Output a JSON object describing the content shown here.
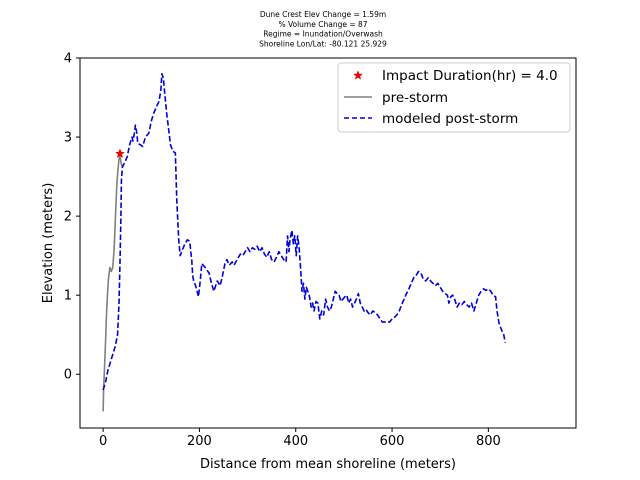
{
  "title_lines": [
    "Dune Crest Elev Change = 1.59m",
    "% Volume Change = 87",
    "Regime = Inundation/Overwash",
    "Shoreline Lon/Lat: -80.121 25.929"
  ],
  "chart_data": {
    "type": "line",
    "xlabel": "Distance from mean shoreline (meters)",
    "ylabel": "Elevation (meters)",
    "xlim": [
      -48,
      982
    ],
    "ylim": [
      -0.68,
      4.0
    ],
    "xticks": [
      0,
      200,
      400,
      600,
      800
    ],
    "yticks": [
      0,
      1,
      2,
      3,
      4
    ],
    "grid": false,
    "legend_position": "upper-right",
    "colors": {
      "pre_storm": "#808080",
      "post_storm": "#0000dd",
      "impact_marker": "#ee0000"
    },
    "impact_marker": {
      "label": "Impact Duration(hr) = 4.0",
      "x": 35,
      "y": 2.79
    },
    "series": [
      {
        "name": "pre-storm",
        "style": "solid",
        "points": [
          [
            0,
            -0.47
          ],
          [
            1,
            -0.2
          ],
          [
            3,
            0.1
          ],
          [
            5,
            0.4
          ],
          [
            7,
            0.75
          ],
          [
            9,
            1.0
          ],
          [
            11,
            1.2
          ],
          [
            14,
            1.35
          ],
          [
            17,
            1.3
          ],
          [
            20,
            1.35
          ],
          [
            23,
            1.6
          ],
          [
            25,
            1.9
          ],
          [
            27,
            2.2
          ],
          [
            29,
            2.45
          ],
          [
            31,
            2.6
          ],
          [
            33,
            2.72
          ],
          [
            35,
            2.79
          ],
          [
            37,
            2.68
          ],
          [
            40,
            2.62
          ]
        ]
      },
      {
        "name": "modeled post-storm",
        "style": "dashed",
        "points": [
          [
            0,
            -0.2
          ],
          [
            5,
            -0.1
          ],
          [
            10,
            0.05
          ],
          [
            15,
            0.15
          ],
          [
            20,
            0.25
          ],
          [
            25,
            0.35
          ],
          [
            30,
            0.5
          ],
          [
            33,
            0.9
          ],
          [
            35,
            1.4
          ],
          [
            37,
            2.0
          ],
          [
            38,
            2.45
          ],
          [
            40,
            2.62
          ],
          [
            45,
            2.68
          ],
          [
            50,
            2.75
          ],
          [
            55,
            2.9
          ],
          [
            60,
            3.0
          ],
          [
            62,
            2.95
          ],
          [
            65,
            3.05
          ],
          [
            67,
            3.15
          ],
          [
            70,
            3.05
          ],
          [
            72,
            2.92
          ],
          [
            78,
            2.9
          ],
          [
            82,
            2.88
          ],
          [
            88,
            3.0
          ],
          [
            95,
            3.05
          ],
          [
            100,
            3.2
          ],
          [
            105,
            3.3
          ],
          [
            112,
            3.4
          ],
          [
            116,
            3.45
          ],
          [
            120,
            3.6
          ],
          [
            122,
            3.8
          ],
          [
            125,
            3.75
          ],
          [
            128,
            3.55
          ],
          [
            132,
            3.3
          ],
          [
            136,
            3.1
          ],
          [
            140,
            2.9
          ],
          [
            145,
            2.82
          ],
          [
            150,
            2.8
          ],
          [
            153,
            2.2
          ],
          [
            157,
            1.7
          ],
          [
            160,
            1.5
          ],
          [
            165,
            1.58
          ],
          [
            170,
            1.65
          ],
          [
            175,
            1.7
          ],
          [
            180,
            1.68
          ],
          [
            182,
            1.55
          ],
          [
            184,
            1.45
          ],
          [
            186,
            1.25
          ],
          [
            188,
            1.18
          ],
          [
            192,
            1.12
          ],
          [
            195,
            1.05
          ],
          [
            198,
            0.98
          ],
          [
            202,
            1.2
          ],
          [
            205,
            1.4
          ],
          [
            212,
            1.35
          ],
          [
            220,
            1.28
          ],
          [
            225,
            1.15
          ],
          [
            230,
            1.05
          ],
          [
            237,
            1.18
          ],
          [
            243,
            1.12
          ],
          [
            248,
            1.25
          ],
          [
            253,
            1.4
          ],
          [
            257,
            1.45
          ],
          [
            262,
            1.38
          ],
          [
            268,
            1.42
          ],
          [
            272,
            1.38
          ],
          [
            278,
            1.45
          ],
          [
            285,
            1.52
          ],
          [
            290,
            1.5
          ],
          [
            295,
            1.55
          ],
          [
            300,
            1.6
          ],
          [
            305,
            1.55
          ],
          [
            310,
            1.6
          ],
          [
            315,
            1.58
          ],
          [
            320,
            1.62
          ],
          [
            325,
            1.55
          ],
          [
            330,
            1.6
          ],
          [
            335,
            1.52
          ],
          [
            340,
            1.48
          ],
          [
            345,
            1.55
          ],
          [
            350,
            1.45
          ],
          [
            355,
            1.42
          ],
          [
            360,
            1.48
          ],
          [
            365,
            1.55
          ],
          [
            370,
            1.5
          ],
          [
            375,
            1.45
          ],
          [
            380,
            1.42
          ],
          [
            383,
            1.75
          ],
          [
            386,
            1.55
          ],
          [
            388,
            1.7
          ],
          [
            392,
            1.82
          ],
          [
            395,
            1.65
          ],
          [
            398,
            1.75
          ],
          [
            401,
            1.5
          ],
          [
            404,
            1.75
          ],
          [
            407,
            1.6
          ],
          [
            410,
            1.35
          ],
          [
            413,
            1.05
          ],
          [
            416,
            1.15
          ],
          [
            419,
            0.95
          ],
          [
            422,
            1.1
          ],
          [
            425,
            1.05
          ],
          [
            428,
            1.0
          ],
          [
            432,
            0.85
          ],
          [
            435,
            0.9
          ],
          [
            438,
            0.8
          ],
          [
            442,
            0.92
          ],
          [
            446,
            0.9
          ],
          [
            450,
            0.7
          ],
          [
            454,
            0.8
          ],
          [
            458,
            0.75
          ],
          [
            462,
            0.95
          ],
          [
            466,
            0.85
          ],
          [
            470,
            0.8
          ],
          [
            474,
            0.85
          ],
          [
            478,
            0.95
          ],
          [
            482,
            1.05
          ],
          [
            486,
            1.02
          ],
          [
            490,
            1.0
          ],
          [
            494,
            0.92
          ],
          [
            498,
            0.95
          ],
          [
            502,
            0.98
          ],
          [
            506,
            1.0
          ],
          [
            510,
            0.9
          ],
          [
            514,
            0.95
          ],
          [
            518,
            0.85
          ],
          [
            522,
            0.9
          ],
          [
            526,
            0.95
          ],
          [
            530,
            1.02
          ],
          [
            534,
            0.9
          ],
          [
            538,
            0.85
          ],
          [
            542,
            0.8
          ],
          [
            546,
            0.82
          ],
          [
            550,
            0.78
          ],
          [
            555,
            0.75
          ],
          [
            560,
            0.8
          ],
          [
            565,
            0.78
          ],
          [
            570,
            0.75
          ],
          [
            575,
            0.7
          ],
          [
            580,
            0.66
          ],
          [
            585,
            0.66
          ],
          [
            590,
            0.67
          ],
          [
            595,
            0.66
          ],
          [
            600,
            0.7
          ],
          [
            605,
            0.72
          ],
          [
            610,
            0.75
          ],
          [
            615,
            0.8
          ],
          [
            620,
            0.88
          ],
          [
            625,
            0.95
          ],
          [
            630,
            1.02
          ],
          [
            635,
            1.08
          ],
          [
            640,
            1.15
          ],
          [
            645,
            1.22
          ],
          [
            650,
            1.25
          ],
          [
            655,
            1.3
          ],
          [
            660,
            1.28
          ],
          [
            665,
            1.2
          ],
          [
            670,
            1.18
          ],
          [
            675,
            1.22
          ],
          [
            680,
            1.18
          ],
          [
            685,
            1.15
          ],
          [
            690,
            1.12
          ],
          [
            695,
            1.15
          ],
          [
            700,
            1.1
          ],
          [
            705,
            1.05
          ],
          [
            710,
            1.02
          ],
          [
            715,
            1.0
          ],
          [
            718,
            0.9
          ],
          [
            722,
            0.98
          ],
          [
            726,
            1.0
          ],
          [
            730,
            0.95
          ],
          [
            735,
            0.85
          ],
          [
            740,
            0.9
          ],
          [
            745,
            0.88
          ],
          [
            750,
            0.92
          ],
          [
            755,
            0.88
          ],
          [
            760,
            0.85
          ],
          [
            765,
            0.9
          ],
          [
            770,
            0.8
          ],
          [
            775,
            0.9
          ],
          [
            780,
            1.0
          ],
          [
            785,
            1.05
          ],
          [
            790,
            1.08
          ],
          [
            795,
            1.06
          ],
          [
            800,
            1.08
          ],
          [
            805,
            1.05
          ],
          [
            810,
            1.0
          ],
          [
            815,
            0.98
          ],
          [
            818,
            0.8
          ],
          [
            822,
            0.65
          ],
          [
            825,
            0.6
          ],
          [
            828,
            0.55
          ],
          [
            832,
            0.5
          ],
          [
            835,
            0.4
          ]
        ]
      }
    ]
  }
}
